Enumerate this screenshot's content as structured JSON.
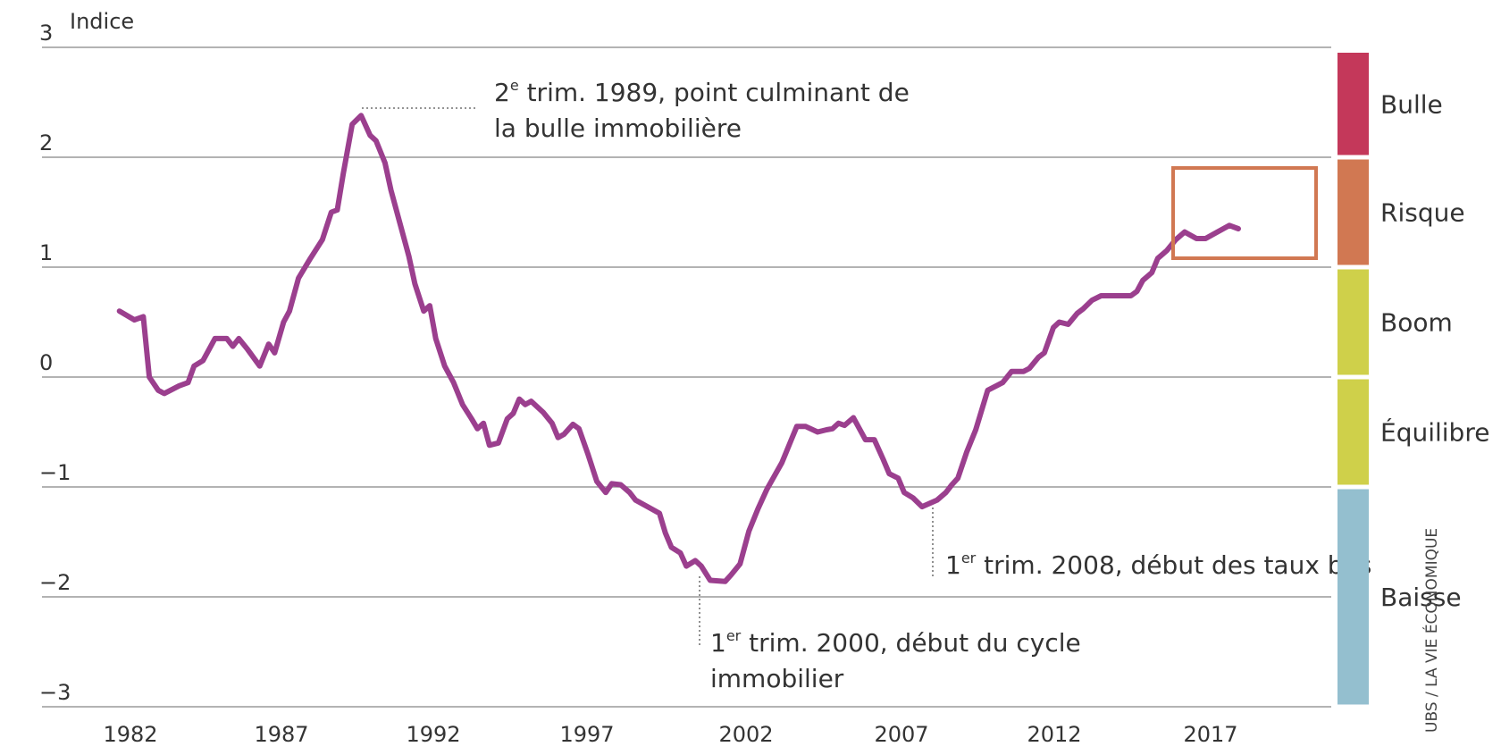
{
  "chart_data": {
    "type": "line",
    "title": "",
    "ylabel": "Indice",
    "xlabel": "",
    "xlim": [
      1980.5,
      2021.5
    ],
    "ylim": [
      -3,
      3
    ],
    "yticks": [
      "3",
      "2",
      "1",
      "0",
      "−1",
      "−2",
      "−3"
    ],
    "xticks": [
      "1982",
      "1987",
      "1992",
      "1997",
      "2002",
      "2007",
      "2012",
      "2017"
    ],
    "grid": true,
    "line_color": "#9b3f8e",
    "series": [
      {
        "values": [
          [
            1982.5,
            0.6
          ],
          [
            1983.0,
            0.52
          ],
          [
            1983.3,
            0.55
          ],
          [
            1983.5,
            0.0
          ],
          [
            1983.8,
            -0.12
          ],
          [
            1984.0,
            -0.15
          ],
          [
            1984.5,
            -0.08
          ],
          [
            1984.8,
            -0.05
          ],
          [
            1985.0,
            0.1
          ],
          [
            1985.3,
            0.15
          ],
          [
            1985.7,
            0.35
          ],
          [
            1986.1,
            0.35
          ],
          [
            1986.3,
            0.28
          ],
          [
            1986.5,
            0.35
          ],
          [
            1986.8,
            0.25
          ],
          [
            1987.2,
            0.1
          ],
          [
            1987.5,
            0.3
          ],
          [
            1987.7,
            0.22
          ],
          [
            1988.0,
            0.5
          ],
          [
            1988.2,
            0.6
          ],
          [
            1988.5,
            0.9
          ],
          [
            1988.9,
            1.08
          ],
          [
            1989.3,
            1.25
          ],
          [
            1989.6,
            1.5
          ],
          [
            1989.8,
            1.52
          ],
          [
            1990.0,
            1.85
          ],
          [
            1990.3,
            2.3
          ],
          [
            1990.6,
            2.38
          ],
          [
            1990.9,
            2.2
          ],
          [
            1991.1,
            2.15
          ],
          [
            1991.4,
            1.95
          ],
          [
            1991.6,
            1.7
          ],
          [
            1991.9,
            1.4
          ],
          [
            1992.2,
            1.1
          ],
          [
            1992.4,
            0.85
          ],
          [
            1992.7,
            0.6
          ],
          [
            1992.9,
            0.65
          ],
          [
            1993.1,
            0.35
          ],
          [
            1993.4,
            0.1
          ],
          [
            1993.7,
            -0.05
          ],
          [
            1994.0,
            -0.25
          ],
          [
            1994.3,
            -0.38
          ],
          [
            1994.5,
            -0.47
          ],
          [
            1994.7,
            -0.42
          ],
          [
            1994.9,
            -0.62
          ],
          [
            1995.2,
            -0.6
          ],
          [
            1995.5,
            -0.38
          ],
          [
            1995.7,
            -0.33
          ],
          [
            1995.9,
            -0.2
          ],
          [
            1996.1,
            -0.25
          ],
          [
            1996.3,
            -0.22
          ],
          [
            1996.7,
            -0.32
          ],
          [
            1997.0,
            -0.42
          ],
          [
            1997.2,
            -0.55
          ],
          [
            1997.4,
            -0.52
          ],
          [
            1997.7,
            -0.43
          ],
          [
            1997.9,
            -0.47
          ],
          [
            1998.2,
            -0.7
          ],
          [
            1998.5,
            -0.95
          ],
          [
            1998.8,
            -1.05
          ],
          [
            1999.0,
            -0.97
          ],
          [
            1999.3,
            -0.98
          ],
          [
            1999.6,
            -1.05
          ],
          [
            1999.8,
            -1.12
          ],
          [
            2000.2,
            -1.18
          ],
          [
            2000.6,
            -1.24
          ],
          [
            2000.8,
            -1.42
          ],
          [
            2001.0,
            -1.55
          ],
          [
            2001.3,
            -1.6
          ],
          [
            2001.5,
            -1.72
          ],
          [
            2001.8,
            -1.67
          ],
          [
            2002.0,
            -1.72
          ],
          [
            2002.3,
            -1.85
          ],
          [
            2002.8,
            -1.86
          ],
          [
            2003.0,
            -1.8
          ],
          [
            2003.3,
            -1.7
          ],
          [
            2003.6,
            -1.4
          ],
          [
            2003.9,
            -1.2
          ],
          [
            2004.2,
            -1.02
          ],
          [
            2004.7,
            -0.78
          ],
          [
            2005.2,
            -0.45
          ],
          [
            2005.5,
            -0.45
          ],
          [
            2005.9,
            -0.5
          ],
          [
            2006.2,
            -0.48
          ],
          [
            2006.4,
            -0.47
          ],
          [
            2006.6,
            -0.42
          ],
          [
            2006.8,
            -0.44
          ],
          [
            2007.1,
            -0.37
          ],
          [
            2007.5,
            -0.57
          ],
          [
            2007.8,
            -0.57
          ],
          [
            2008.1,
            -0.75
          ],
          [
            2008.3,
            -0.88
          ],
          [
            2008.6,
            -0.92
          ],
          [
            2008.8,
            -1.05
          ],
          [
            2009.1,
            -1.1
          ],
          [
            2009.4,
            -1.18
          ],
          [
            2009.9,
            -1.12
          ],
          [
            2010.2,
            -1.05
          ],
          [
            2010.4,
            -0.98
          ],
          [
            2010.6,
            -0.92
          ],
          [
            2010.9,
            -0.68
          ],
          [
            2011.2,
            -0.48
          ],
          [
            2011.6,
            -0.12
          ],
          [
            2012.1,
            -0.05
          ],
          [
            2012.4,
            0.05
          ],
          [
            2012.8,
            0.05
          ],
          [
            2013.0,
            0.08
          ],
          [
            2013.3,
            0.18
          ],
          [
            2013.5,
            0.22
          ],
          [
            2013.8,
            0.45
          ],
          [
            2014.0,
            0.5
          ],
          [
            2014.3,
            0.48
          ],
          [
            2014.6,
            0.58
          ],
          [
            2014.8,
            0.62
          ],
          [
            2015.1,
            0.7
          ],
          [
            2015.4,
            0.74
          ],
          [
            2015.8,
            0.74
          ],
          [
            2016.4,
            0.74
          ],
          [
            2016.6,
            0.78
          ],
          [
            2016.8,
            0.88
          ],
          [
            2017.1,
            0.95
          ],
          [
            2017.3,
            1.08
          ],
          [
            2017.6,
            1.15
          ],
          [
            2017.9,
            1.25
          ],
          [
            2018.2,
            1.32
          ],
          [
            2018.6,
            1.26
          ],
          [
            2018.9,
            1.26
          ],
          [
            2019.3,
            1.32
          ],
          [
            2019.7,
            1.38
          ],
          [
            2020.0,
            1.35
          ]
        ]
      }
    ],
    "annotations": [
      {
        "lines": [
          "2e trim. 1989, point culminant de",
          "la bulle immobilière"
        ]
      },
      {
        "lines": [
          "1er trim. 2000, début du cycle",
          "immobilier"
        ]
      },
      {
        "lines": [
          "1er trim. 2008, début des taux bas"
        ]
      }
    ],
    "bands": [
      {
        "label": "Bulle",
        "from": 2,
        "to": 3,
        "color": "#c4385a"
      },
      {
        "label": "Risque",
        "from": 1,
        "to": 2,
        "color": "#d17852"
      },
      {
        "label": "Boom",
        "from": 0,
        "to": 1,
        "color": "#cfd04a"
      },
      {
        "label": "Équilibre",
        "from": -1,
        "to": 0,
        "color": "#cfd04a"
      },
      {
        "label": "Baisse",
        "from": -3,
        "to": -1,
        "color": "#94bfcf"
      }
    ],
    "highlight_box_color": "#d17852",
    "source": "UBS / LA VIE ÉCONOMIQUE"
  }
}
